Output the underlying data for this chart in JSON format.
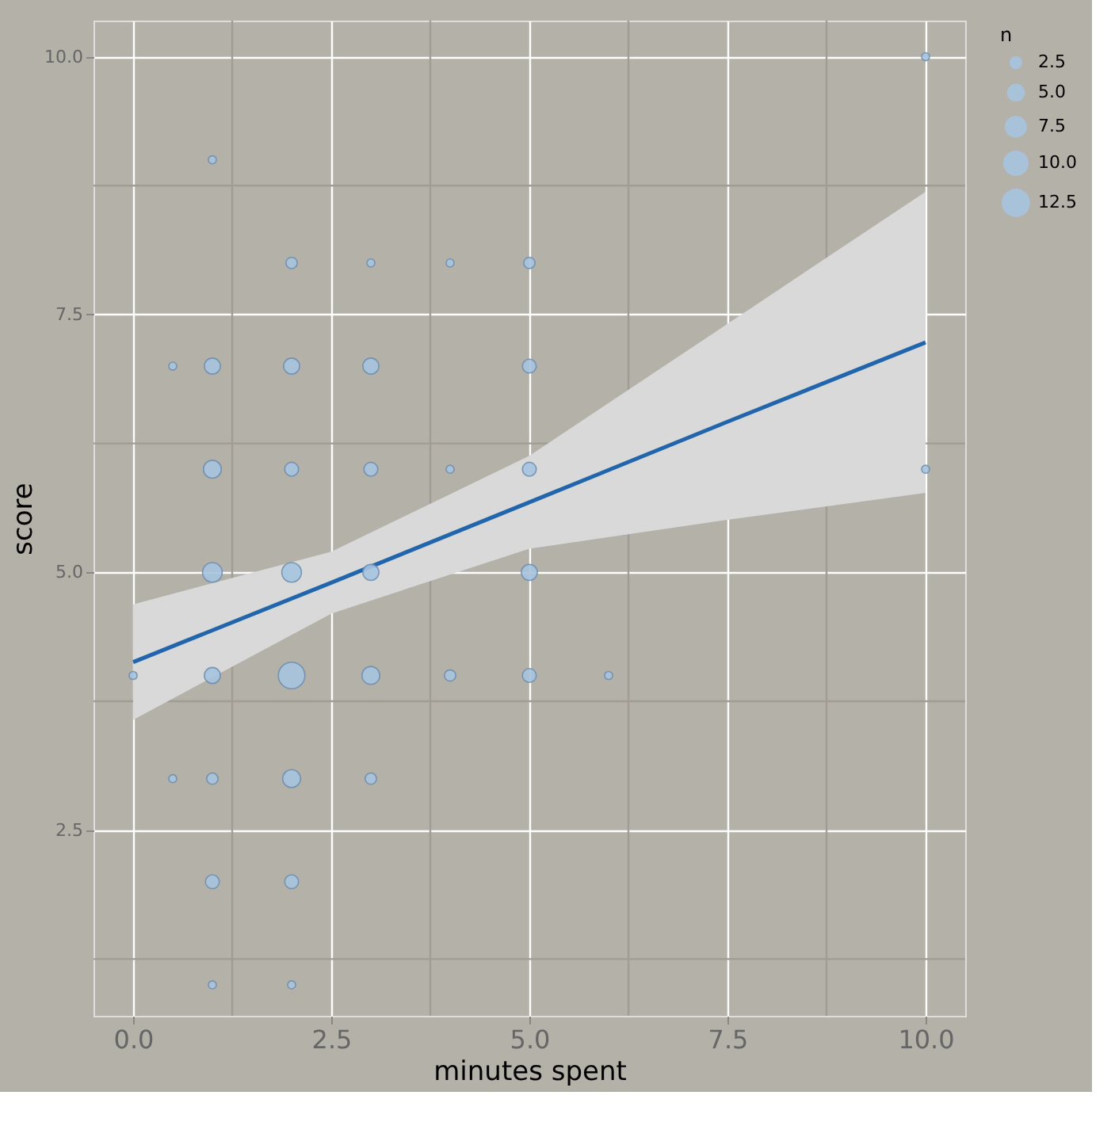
{
  "chart_data": {
    "type": "bubble",
    "xlabel": "minutes spent",
    "ylabel": "score",
    "legend_title": "n",
    "grid": true,
    "xlim": [
      -0.5,
      10.5
    ],
    "ylim": [
      0.7,
      10.35
    ],
    "xticks": [
      {
        "value": 0,
        "label": "0.0"
      },
      2.5,
      {
        "value": 5,
        "label": "5.0"
      },
      7.5,
      {
        "value": 10,
        "label": "10.0"
      }
    ],
    "yticks": [
      2.5,
      {
        "value": 5,
        "label": "5.0"
      },
      7.5,
      {
        "value": 10,
        "label": "10.0"
      }
    ],
    "size_legend": [
      {
        "value": 2.5,
        "label": "2.5"
      },
      {
        "value": 5,
        "label": "5.0"
      },
      {
        "value": 7.5,
        "label": "7.5"
      },
      {
        "value": 10,
        "label": "10.0"
      },
      {
        "value": 12.5,
        "label": "12.5"
      }
    ],
    "series": [
      {
        "color": "#a7c4e0",
        "x": [
          10,
          1,
          2,
          3,
          4,
          5,
          0.5,
          1,
          2,
          3,
          5,
          1,
          2,
          3,
          4,
          5,
          10,
          1,
          2,
          3,
          5,
          0,
          1,
          2,
          3,
          4,
          5,
          6,
          0.5,
          1,
          2,
          3,
          1,
          2,
          1,
          2
        ],
        "values": [
          10,
          9,
          8,
          8,
          8,
          8,
          7,
          7,
          7,
          7,
          7,
          6,
          6,
          6,
          6,
          6,
          6,
          5,
          5,
          5,
          5,
          4,
          4,
          4,
          4,
          4,
          4,
          4,
          3,
          3,
          3,
          3,
          2,
          2,
          1,
          1
        ],
        "sizes": [
          1,
          1,
          2,
          1,
          1,
          2,
          1,
          4,
          4,
          4,
          3,
          5,
          3,
          3,
          1,
          3,
          1,
          6,
          6,
          4,
          4,
          1,
          4,
          11,
          5,
          2,
          3,
          1,
          1,
          2,
          5,
          2,
          3,
          3,
          1,
          1
        ]
      },
      {
        "type": "line",
        "color": "#2166ac",
        "x": [
          0,
          2.5,
          5,
          7.5,
          10
        ],
        "values": [
          4.13,
          4.9,
          5.68,
          6.46,
          7.23
        ],
        "lower": [
          3.57,
          4.6,
          5.23,
          5.51,
          5.77
        ],
        "upper": [
          4.69,
          5.2,
          6.13,
          7.41,
          8.69
        ]
      }
    ]
  }
}
